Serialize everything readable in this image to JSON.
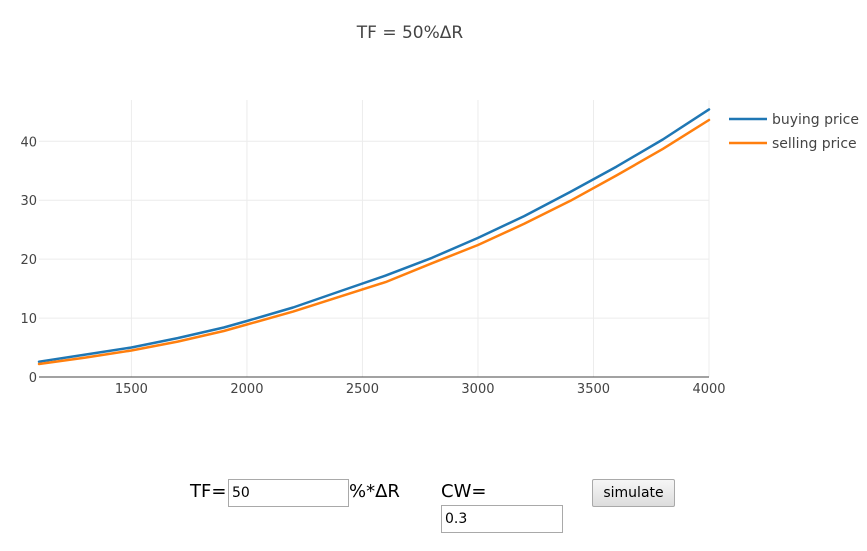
{
  "page": {
    "title": "TF = 50%ΔR"
  },
  "chart_data": {
    "type": "line",
    "title": "TF = 50%ΔR",
    "xlabel": "",
    "ylabel": "",
    "xlim": [
      1100,
      4000
    ],
    "ylim": [
      0,
      47
    ],
    "xticks": [
      1500,
      2000,
      2500,
      3000,
      3500,
      4000
    ],
    "yticks": [
      0,
      10,
      20,
      30,
      40
    ],
    "grid": true,
    "legend_position": "top-right",
    "series": [
      {
        "name": "buying price",
        "color": "#1f77b4",
        "points": [
          [
            1100,
            2.6
          ],
          [
            1300,
            3.8
          ],
          [
            1500,
            5.0
          ],
          [
            1700,
            6.6
          ],
          [
            1900,
            8.4
          ],
          [
            2000,
            9.5
          ],
          [
            2200,
            11.8
          ],
          [
            2400,
            14.5
          ],
          [
            2600,
            17.2
          ],
          [
            2800,
            20.2
          ],
          [
            3000,
            23.6
          ],
          [
            3200,
            27.3
          ],
          [
            3400,
            31.4
          ],
          [
            3600,
            35.7
          ],
          [
            3800,
            40.3
          ],
          [
            4000,
            45.4
          ]
        ]
      },
      {
        "name": "selling price",
        "color": "#ff7f0e",
        "points": [
          [
            1100,
            2.2
          ],
          [
            1300,
            3.3
          ],
          [
            1500,
            4.5
          ],
          [
            1700,
            6.0
          ],
          [
            1900,
            7.8
          ],
          [
            2000,
            8.9
          ],
          [
            2200,
            11.1
          ],
          [
            2400,
            13.6
          ],
          [
            2600,
            16.1
          ],
          [
            2800,
            19.3
          ],
          [
            3000,
            22.4
          ],
          [
            3200,
            26.0
          ],
          [
            3400,
            29.9
          ],
          [
            3600,
            34.2
          ],
          [
            3800,
            38.7
          ],
          [
            4000,
            43.6
          ]
        ]
      }
    ]
  },
  "controls": {
    "tf_label": "TF=",
    "tf_value": "50",
    "tf_suffix": "%*ΔR",
    "cw_label": "CW=",
    "cw_value": "0.3",
    "simulate_label": "simulate"
  }
}
